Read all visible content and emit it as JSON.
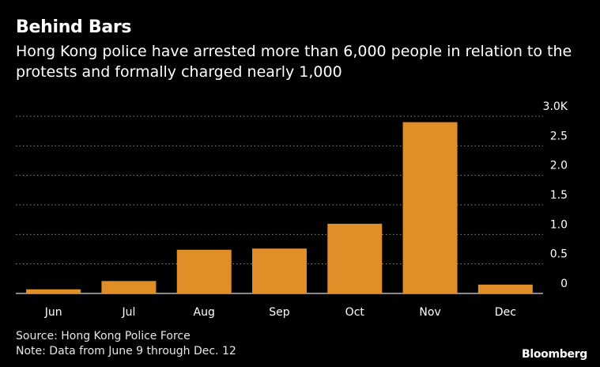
{
  "header": {
    "title": "Behind Bars",
    "subtitle": "Hong Kong police have arrested more than 6,000 people in relation to the protests and formally charged nearly 1,000"
  },
  "footer": {
    "source": "Source: Hong Kong Police Force",
    "note": "Note: Data from June 9 through Dec. 12",
    "brand": "Bloomberg"
  },
  "colors": {
    "bar": "#e08e27",
    "grid": "#8c8c8c",
    "text": "#ffffff"
  },
  "chart_data": {
    "type": "bar",
    "categories": [
      "Jun",
      "Jul",
      "Aug",
      "Sep",
      "Oct",
      "Nov",
      "Dec"
    ],
    "values": [
      0.07,
      0.21,
      0.74,
      0.76,
      1.18,
      2.9,
      0.15
    ],
    "ylim": [
      0,
      3
    ],
    "yticks": [
      0,
      0.5,
      1,
      1.5,
      2,
      2.5,
      3
    ],
    "ytick_labels": [
      "0",
      "0.5",
      "1.0",
      "1.5",
      "2.0",
      "2.5",
      "3.0K"
    ],
    "grid": true,
    "y_axis_side": "right"
  }
}
